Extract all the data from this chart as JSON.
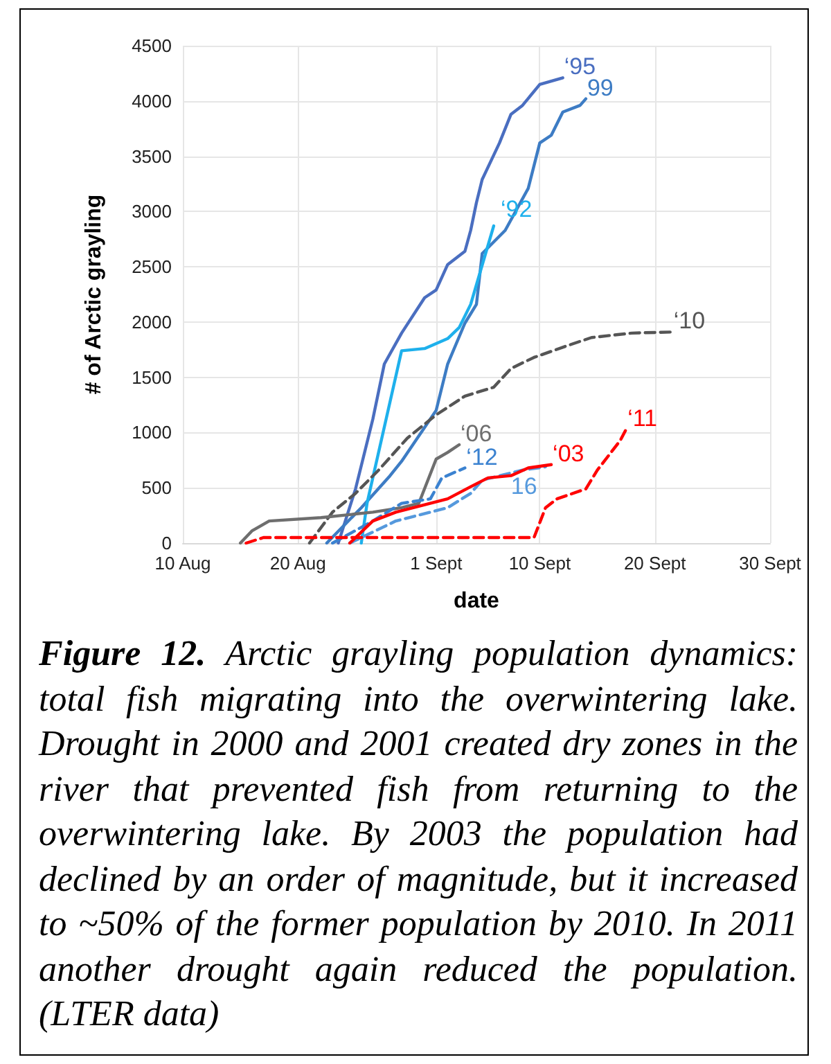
{
  "chart_data": {
    "type": "line",
    "xlabel": "date",
    "ylabel": "# of Arctic grayling",
    "xlim": [
      "--08-10",
      "--09-30"
    ],
    "xticks": [
      {
        "value": "--08-10",
        "label": "10 Aug"
      },
      {
        "value": "--08-20",
        "label": "20 Aug"
      },
      {
        "value": "--09-01",
        "label": "1 Sept"
      },
      {
        "value": "--09-10",
        "label": "10 Sept"
      },
      {
        "value": "--09-20",
        "label": "20 Sept"
      },
      {
        "value": "--09-30",
        "label": "30 Sept"
      }
    ],
    "ylim": [
      0,
      4500
    ],
    "yticks": [
      0,
      500,
      1000,
      1500,
      2000,
      2500,
      3000,
      3500,
      4000,
      4500
    ],
    "grid": true,
    "legend": false,
    "marker": "none",
    "series": [
      {
        "name": "‘95",
        "color": "#4a6ec0",
        "line_style": "solid",
        "x": [
          "--08-23T12:00",
          "--08-25",
          "--08-26T12:00",
          "--08-27T12:00",
          "--08-29",
          "--08-31",
          "--09-01",
          "--09-02",
          "--09-03T12:00",
          "--09-04",
          "--09-04T12:00",
          "--09-05",
          "--09-06T12:00",
          "--09-07T12:00",
          "--09-08T12:00",
          "--09-10",
          "--09-12"
        ],
        "values": [
          0,
          490,
          1120,
          1620,
          1900,
          2220,
          2290,
          2520,
          2640,
          2830,
          3080,
          3290,
          3620,
          3880,
          3960,
          4150,
          4210
        ]
      },
      {
        "name": "99",
        "color": "#3d7cc4",
        "line_style": "solid",
        "x": [
          "--08-22T12:00",
          "--08-25T12:00",
          "--08-28",
          "--08-29",
          "--09-01",
          "--09-02",
          "--09-03T12:00",
          "--09-04T12:00",
          "--09-05",
          "--09-07",
          "--09-09",
          "--09-10",
          "--09-11",
          "--09-12",
          "--09-13T12:00",
          "--09-14"
        ],
        "values": [
          0,
          320,
          610,
          740,
          1200,
          1620,
          1990,
          2160,
          2620,
          2830,
          3210,
          3620,
          3690,
          3900,
          3960,
          4020
        ]
      },
      {
        "name": "‘92",
        "color": "#1eb0ec",
        "line_style": "solid",
        "x": [
          "--08-25T12:00",
          "--08-26",
          "--08-29",
          "--08-31",
          "--09-02",
          "--09-03",
          "--09-04",
          "--09-06"
        ],
        "values": [
          0,
          360,
          1740,
          1760,
          1850,
          1950,
          2160,
          2870
        ]
      },
      {
        "name": "‘10",
        "color": "#555555",
        "line_style": "dashed",
        "x": [
          "--08-21",
          "--08-23",
          "--08-25",
          "--08-27",
          "--08-29T12:00",
          "--09-01",
          "--09-03T12:00",
          "--09-06",
          "--09-07T12:00",
          "--09-09T12:00",
          "--09-12T12:00",
          "--09-14T12:00",
          "--09-18",
          "--09-21T12:00"
        ],
        "values": [
          0,
          280,
          450,
          660,
          950,
          1160,
          1330,
          1410,
          1580,
          1680,
          1790,
          1860,
          1900,
          1910
        ]
      },
      {
        "name": "‘06",
        "color": "#6e6e6e",
        "line_style": "solid",
        "x": [
          "--08-15",
          "--08-16",
          "--08-17T12:00",
          "--08-22",
          "--08-26T12:00",
          "--08-29",
          "--08-30T12:00",
          "--09-01",
          "--09-02",
          "--09-03"
        ],
        "values": [
          0,
          110,
          200,
          230,
          280,
          320,
          360,
          760,
          820,
          890
        ]
      },
      {
        "name": "‘12",
        "color": "#3b82d0",
        "line_style": "dashed",
        "x": [
          "--08-23",
          "--08-26T12:00",
          "--08-29",
          "--08-31T12:00",
          "--09-01T12:00",
          "--09-03T12:00"
        ],
        "values": [
          0,
          200,
          360,
          400,
          590,
          680
        ]
      },
      {
        "name": "16",
        "color": "#5599dd",
        "line_style": "dashed",
        "x": [
          "--08-24T12:00",
          "--08-28T12:00",
          "--09-02",
          "--09-04",
          "--09-05",
          "--09-08T12:00",
          "--09-10T12:00"
        ],
        "values": [
          0,
          200,
          320,
          450,
          570,
          660,
          690
        ]
      },
      {
        "name": "‘03",
        "color": "#ff0000",
        "line_style": "solid",
        "x": [
          "--08-24T12:00",
          "--08-26T12:00",
          "--08-28T12:00",
          "--09-02",
          "--09-04",
          "--09-05T12:00",
          "--09-07T12:00",
          "--09-09",
          "--09-11"
        ],
        "values": [
          0,
          200,
          280,
          400,
          510,
          590,
          610,
          680,
          710
        ]
      },
      {
        "name": "‘11",
        "color": "#ff0000",
        "line_style": "dashed",
        "x": [
          "--08-15T12:00",
          "--08-17",
          "--08-22",
          "--09-09T12:00",
          "--09-10T12:00",
          "--09-11T12:00",
          "--09-14",
          "--09-15",
          "--09-17",
          "--09-17T12:00"
        ],
        "values": [
          0,
          50,
          50,
          50,
          320,
          400,
          490,
          660,
          930,
          1030
        ]
      }
    ],
    "annotations": [
      "Figure 12.",
      "Arctic grayling population dynamics: total fish migrating into the overwintering lake.  Drought in 2000 and 2001 created dry zones in the river that prevented fish from returning to the overwintering lake. By 2003 the population had declined by an order of magnitude, but it increased to ~50% of the former population by 2010.  In 2011 another drought again reduced the population. (LTER data)"
    ]
  }
}
